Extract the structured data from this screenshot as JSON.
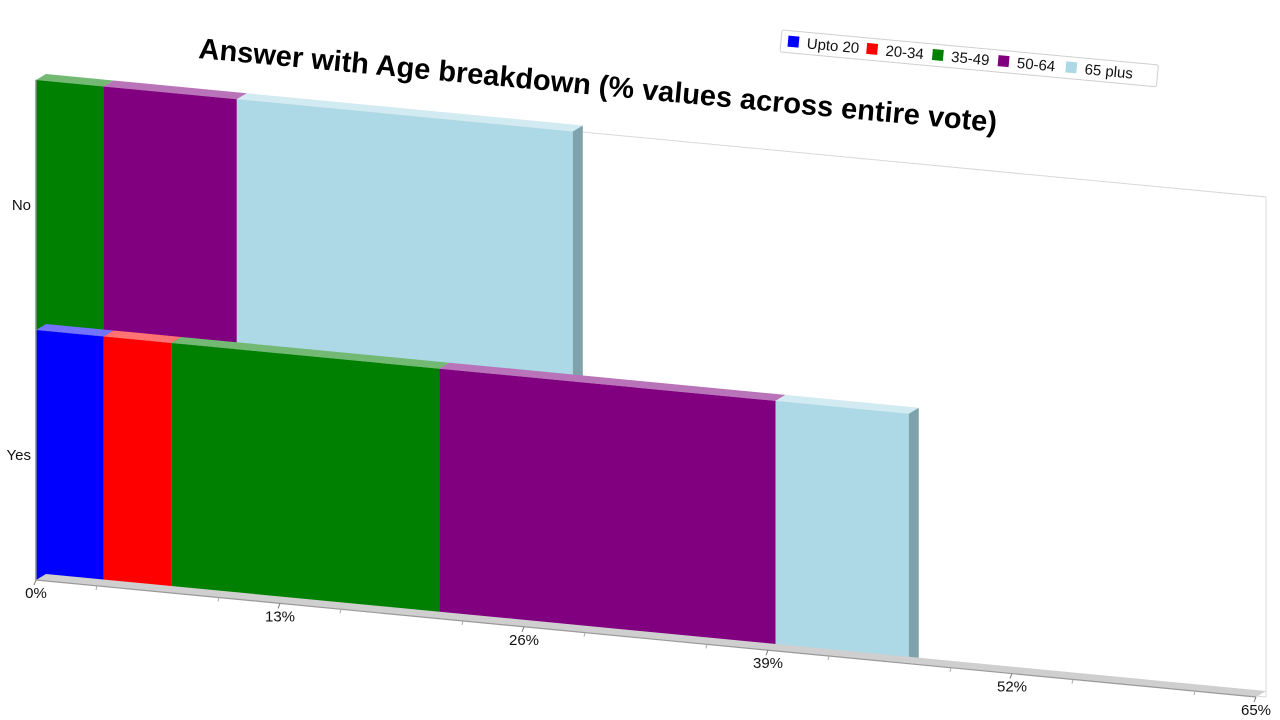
{
  "chart_data": {
    "type": "bar",
    "orientation": "horizontal",
    "stacked": true,
    "title": "Answer with Age breakdown (% values across entire vote)",
    "categories": [
      "No",
      "Yes"
    ],
    "series": [
      {
        "name": "Upto 20",
        "color": "#0000ff",
        "values": [
          0,
          3.6
        ]
      },
      {
        "name": "20-34",
        "color": "#ff0000",
        "values": [
          0,
          3.6
        ]
      },
      {
        "name": "35-49",
        "color": "#008000",
        "values": [
          3.6,
          14.3
        ]
      },
      {
        "name": "50-64",
        "color": "#800080",
        "values": [
          7.1,
          17.9
        ]
      },
      {
        "name": "65 plus",
        "color": "#add8e6",
        "values": [
          17.9,
          7.1
        ]
      }
    ],
    "x_ticks": [
      "0%",
      "13%",
      "26%",
      "39%",
      "52%",
      "65%"
    ],
    "xlim": [
      0,
      65
    ],
    "legend_position": "top-right",
    "grid": false
  }
}
